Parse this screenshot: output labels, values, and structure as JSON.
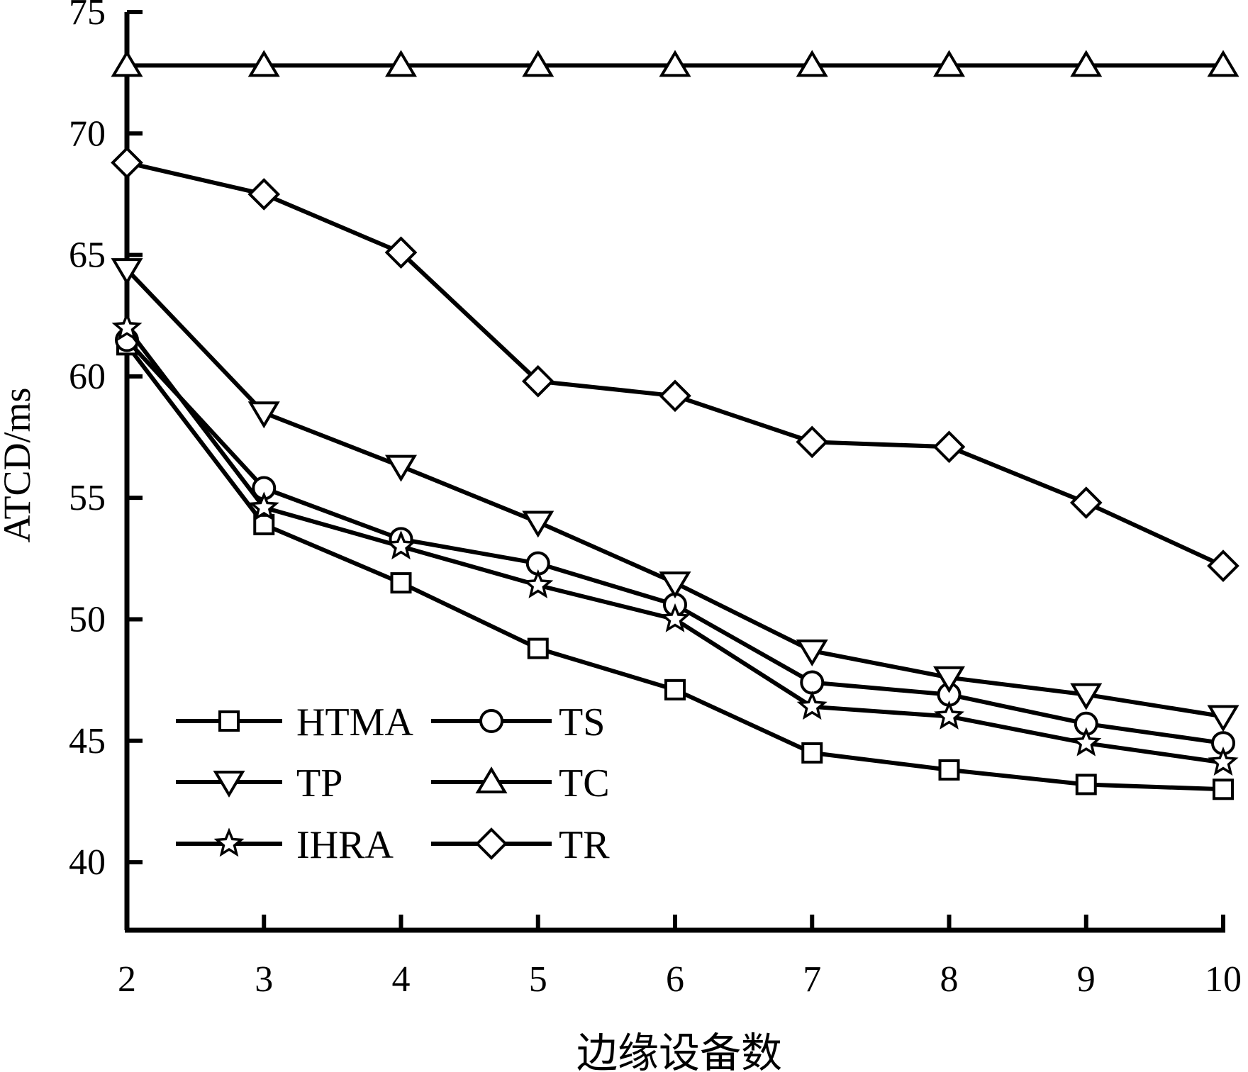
{
  "chart_data": {
    "type": "line",
    "title": "",
    "xlabel": "边缘设备数",
    "ylabel": "ATCD/ms",
    "x": [
      2,
      3,
      4,
      5,
      6,
      7,
      8,
      9,
      10
    ],
    "xlim": [
      2,
      10
    ],
    "ylim": [
      37.2,
      75
    ],
    "yticks": [
      40,
      45,
      50,
      55,
      60,
      65,
      70,
      75
    ],
    "grid": false,
    "legend_position": "bottom-left",
    "series": [
      {
        "name": "HTMA",
        "marker": "square",
        "values": [
          61.3,
          53.9,
          51.5,
          48.8,
          47.1,
          44.5,
          43.8,
          43.2,
          43.0
        ]
      },
      {
        "name": "TS",
        "marker": "circle",
        "values": [
          61.5,
          55.4,
          53.3,
          52.3,
          50.6,
          47.4,
          46.9,
          45.7,
          44.9
        ]
      },
      {
        "name": "TP",
        "marker": "triangle-down",
        "values": [
          64.4,
          58.5,
          56.3,
          54.0,
          51.5,
          48.7,
          47.6,
          46.9,
          46.0
        ]
      },
      {
        "name": "TC",
        "marker": "triangle-up",
        "values": [
          72.8,
          72.8,
          72.8,
          72.8,
          72.8,
          72.8,
          72.8,
          72.8,
          72.8
        ]
      },
      {
        "name": "IHRA",
        "marker": "star",
        "values": [
          62.0,
          54.6,
          53.0,
          51.4,
          50.0,
          46.4,
          46.0,
          44.9,
          44.1
        ]
      },
      {
        "name": "TR",
        "marker": "diamond",
        "values": [
          68.8,
          67.5,
          65.1,
          59.8,
          59.2,
          57.3,
          57.1,
          54.8,
          52.2
        ]
      }
    ]
  }
}
